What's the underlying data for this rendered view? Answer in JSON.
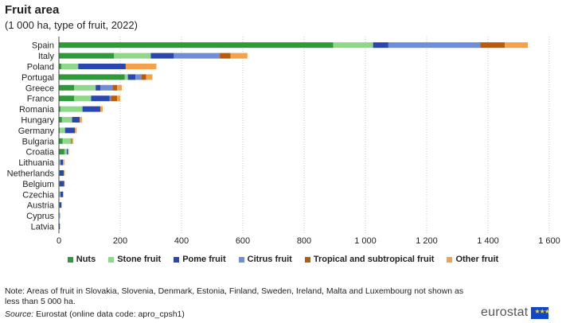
{
  "header": {
    "title": "Fruit area",
    "subtitle": "(1 000 ha, type of fruit, 2022)"
  },
  "colors": {
    "Nuts": "#2e9a3a",
    "Stone fruit": "#8fd88a",
    "Pome fruit": "#2a47ae",
    "Citrus fruit": "#6e8ed8",
    "Tropical and subtropical fruit": "#b85c0c",
    "Other fruit": "#f4a24a"
  },
  "legend": [
    "Nuts",
    "Stone fruit",
    "Pome fruit",
    "Citrus fruit",
    "Tropical and subtropical fruit",
    "Other fruit"
  ],
  "chart_data": {
    "type": "bar",
    "orientation": "horizontal",
    "stacked": true,
    "categories": [
      "Spain",
      "Italy",
      "Poland",
      "Portugal",
      "Greece",
      "France",
      "Romania",
      "Hungary",
      "Germany",
      "Bulgaria",
      "Croatia",
      "Lithuania",
      "Netherlands",
      "Belgium",
      "Czechia",
      "Austria",
      "Cyprus",
      "Latvia"
    ],
    "series": [
      {
        "name": "Nuts",
        "values": [
          895,
          180,
          8,
          215,
          50,
          50,
          5,
          10,
          3,
          12,
          18,
          2,
          0,
          0,
          2,
          1,
          1,
          1
        ]
      },
      {
        "name": "Stone fruit",
        "values": [
          130,
          120,
          55,
          10,
          70,
          55,
          72,
          33,
          17,
          28,
          8,
          3,
          2,
          2,
          3,
          1,
          1,
          0
        ]
      },
      {
        "name": "Pome fruit",
        "values": [
          50,
          75,
          155,
          25,
          15,
          60,
          58,
          25,
          32,
          2,
          3,
          8,
          14,
          15,
          8,
          6,
          0,
          2
        ]
      },
      {
        "name": "Citrus fruit",
        "values": [
          300,
          150,
          0,
          20,
          40,
          5,
          0,
          0,
          0,
          0,
          2,
          0,
          0,
          0,
          0,
          0,
          2,
          0
        ]
      },
      {
        "name": "Tropical and subtropical fruit",
        "values": [
          80,
          35,
          0,
          15,
          15,
          20,
          0,
          0,
          0,
          0,
          0,
          0,
          0,
          0,
          0,
          0,
          0,
          0
        ]
      },
      {
        "name": "Other fruit",
        "values": [
          75,
          55,
          100,
          20,
          15,
          10,
          8,
          7,
          6,
          5,
          1,
          5,
          3,
          2,
          2,
          1,
          0,
          1
        ]
      }
    ],
    "xlim": [
      0,
      1600
    ],
    "xticks": [
      0,
      200,
      400,
      600,
      800,
      1000,
      1200,
      1400,
      1600
    ],
    "xtick_labels": [
      "0",
      "200",
      "400",
      "600",
      "800",
      "1 000",
      "1 200",
      "1 400",
      "1 600"
    ],
    "grid": "vertical dotted",
    "legend_position": "bottom"
  },
  "footer": {
    "note": "Note: Areas of fruit in Slovakia, Slovenia, Denmark, Estonia, Finland, Sweden, Ireland, Malta and Luxembourg not shown as less than 5 000 ha.",
    "source_label": "Source:",
    "source_text": "Eurostat (online data code: apro_cpsh1)",
    "logo_text": "eurostat"
  }
}
